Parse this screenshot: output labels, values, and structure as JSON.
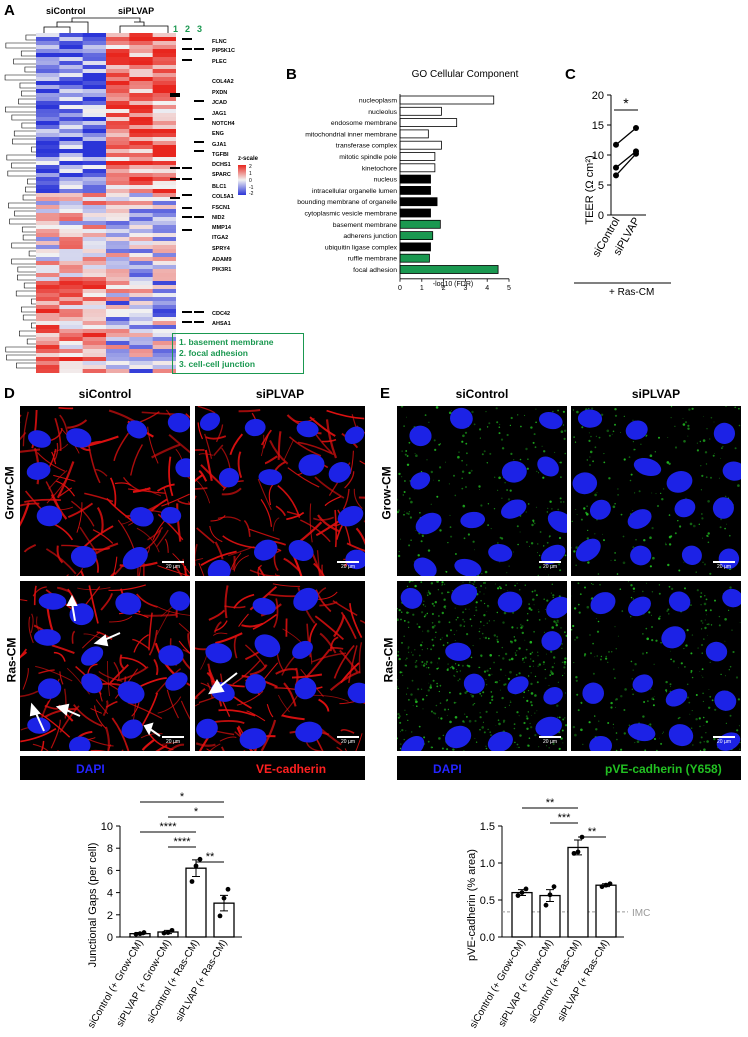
{
  "panels": {
    "A": "A",
    "B": "B",
    "C": "C",
    "D": "D",
    "E": "E"
  },
  "heatmap": {
    "group_labels": [
      "siControl",
      "siPLVAP"
    ],
    "column_numbers": [
      "1",
      "2",
      "3"
    ],
    "genes": [
      "FLNC",
      "PIP5K1C",
      "PLEC",
      "COL4A2",
      "PXDN",
      "JCAD",
      "JAG1",
      "NOTCH4",
      "ENG",
      "GJA1",
      "TGFBI",
      "DCHS1",
      "SPARC",
      "BLC1",
      "COL5A1",
      "FSCN1",
      "NID2",
      "MMP14",
      "ITGA2",
      "SPRY4",
      "ADAM9",
      "PIK3R1",
      "CDC42",
      "AHSA1"
    ],
    "scale_title": "z-scale",
    "scale_ticks": [
      "2",
      "1",
      "0",
      "-1",
      "-2"
    ],
    "legend": [
      "1. basement membrane",
      "2. focal adhesion",
      "3. cell-cell junction"
    ],
    "colors": {
      "high": "#e8261e",
      "mid": "#f2f2f2",
      "low": "#2b35d8",
      "green": "#1a9850"
    }
  },
  "go_chart": {
    "title": "GO Cellular Component",
    "xlabel": "-log10 (FDR)",
    "xticks": [
      "0",
      "1",
      "2",
      "3",
      "4",
      "5"
    ]
  },
  "teer_chart": {
    "ylabel": "TEER (Ω cm²)",
    "yticks": [
      "0",
      "5",
      "10",
      "15",
      "20"
    ],
    "xticklabels": [
      "siControl",
      "siPLVAP"
    ],
    "footer": "+ Ras-CM",
    "sig": "*"
  },
  "panel_d": {
    "col_headers": [
      "siControl",
      "siPLVAP"
    ],
    "row_labels": [
      "Grow-CM",
      "Ras-CM"
    ],
    "scale_text": "20 µm",
    "legend": [
      "DAPI",
      "VE-cadherin"
    ],
    "stain_color": "#e01010"
  },
  "panel_e": {
    "col_headers": [
      "siControl",
      "siPLVAP"
    ],
    "row_labels": [
      "Grow-CM",
      "Ras-CM"
    ],
    "scale_text": "20 µm",
    "legend": [
      "DAPI",
      "pVE-cadherin (Y658)"
    ],
    "stain_color": "#22c022"
  },
  "gaps_chart": {
    "ylabel": "Junctional Gaps (per cell)",
    "yticks": [
      "0",
      "2",
      "4",
      "6",
      "8",
      "10"
    ],
    "sig": [
      "*",
      "*",
      "****",
      "****",
      "**"
    ]
  },
  "pve_chart": {
    "ylabel": "pVE-cadherin (% area)",
    "yticks": [
      "0.0",
      "0.5",
      "1.0",
      "1.5"
    ],
    "sig": [
      "**",
      "***",
      "**"
    ],
    "reference_label": "IMC"
  },
  "chart_data": [
    {
      "type": "bar",
      "title": "GO Cellular Component",
      "xlabel": "-log10 (FDR)",
      "orientation": "horizontal",
      "categories": [
        "nucleoplasm",
        "nucleolus",
        "endosome membrane",
        "mitochondrial inner membrane",
        "transferase complex",
        "mitotic spindle pole",
        "kinetochore",
        "nucleus",
        "intracellular organelle lumen",
        "bounding membrane of organelle",
        "cytoplasmic vesicle membrane",
        "basement membrane",
        "adherens junction",
        "ubiquitin ligase complex",
        "ruffle membrane",
        "focal adhesion"
      ],
      "values": [
        4.3,
        1.9,
        2.6,
        1.3,
        1.9,
        1.6,
        1.6,
        1.4,
        1.4,
        1.7,
        1.4,
        1.85,
        1.5,
        1.4,
        1.35,
        4.5
      ],
      "bar_colors": [
        "white",
        "white",
        "white",
        "white",
        "white",
        "white",
        "white",
        "black",
        "black",
        "black",
        "black",
        "green",
        "green",
        "black",
        "green",
        "green"
      ],
      "xlim": [
        0,
        5
      ]
    },
    {
      "type": "line",
      "ylabel": "TEER (Ω cm²)",
      "categories": [
        "siControl",
        "siPLVAP"
      ],
      "series": [
        {
          "values": [
            11.7,
            14.5
          ]
        },
        {
          "values": [
            7.9,
            10.6
          ]
        },
        {
          "values": [
            6.6,
            10.2
          ]
        }
      ],
      "ylim": [
        0,
        20
      ],
      "footer": "+ Ras-CM",
      "significance": "*"
    },
    {
      "type": "bar",
      "ylabel": "Junctional Gaps (per cell)",
      "categories": [
        "siControl (+ Grow-CM)",
        "siPLVAP (+ Grow-CM)",
        "siControl (+ Ras-CM)",
        "siPLVAP (+ Ras-CM)"
      ],
      "values": [
        0.3,
        0.45,
        6.2,
        3.05
      ],
      "errors": [
        0.1,
        0.15,
        0.75,
        0.7
      ],
      "points": [
        [
          0.25,
          0.3,
          0.4
        ],
        [
          0.35,
          0.4,
          0.6
        ],
        [
          5.0,
          6.4,
          7.0
        ],
        [
          1.9,
          3.5,
          4.3
        ]
      ],
      "ylim": [
        0,
        10
      ]
    },
    {
      "type": "bar",
      "ylabel": "pVE-cadherin (% area)",
      "categories": [
        "siControl (+ Grow-CM)",
        "siPLVAP (+ Grow-CM)",
        "siControl (+ Ras-CM)",
        "siPLVAP (+ Ras-CM)"
      ],
      "values": [
        0.6,
        0.56,
        1.21,
        0.7
      ],
      "errors": [
        0.04,
        0.08,
        0.1,
        0.02
      ],
      "points": [
        [
          0.56,
          0.6,
          0.65
        ],
        [
          0.43,
          0.57,
          0.68
        ],
        [
          1.13,
          1.15,
          1.35
        ],
        [
          0.68,
          0.7,
          0.72
        ]
      ],
      "ylim": [
        0,
        1.5
      ],
      "reference": {
        "label": "IMC",
        "value": 0.34
      }
    }
  ]
}
